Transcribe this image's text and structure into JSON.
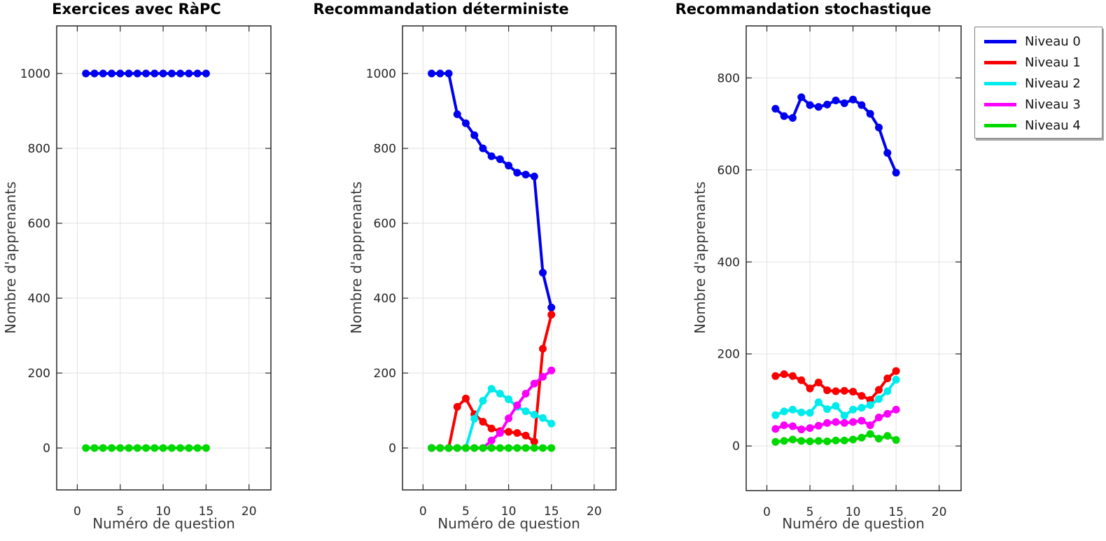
{
  "legend": {
    "position": "top-right",
    "items": [
      {
        "label": "Niveau 0",
        "color": "#0000f0"
      },
      {
        "label": "Niveau 1",
        "color": "#fa0000"
      },
      {
        "label": "Niveau 2",
        "color": "#00ebeb"
      },
      {
        "label": "Niveau 3",
        "color": "#fa00fa"
      },
      {
        "label": "Niveau 4",
        "color": "#00d900"
      }
    ]
  },
  "chart_data": [
    {
      "type": "line",
      "title": "Exercices avec RàPC",
      "xlabel": "Numéro de question",
      "ylabel": "Nombre d'apprenants",
      "x": [
        1,
        2,
        3,
        4,
        5,
        6,
        7,
        8,
        9,
        10,
        11,
        12,
        13,
        14,
        15
      ],
      "xlim": [
        -2.4,
        22.55
      ],
      "ylim": [
        -112,
        1127
      ],
      "xticks": [
        0,
        5,
        10,
        15,
        20
      ],
      "yticks": [
        0,
        200,
        400,
        600,
        800,
        1000
      ],
      "grid": true,
      "series": [
        {
          "name": "Niveau 0",
          "color": "#0000f0",
          "values": [
            1000,
            1000,
            1000,
            1000,
            1000,
            1000,
            1000,
            1000,
            1000,
            1000,
            1000,
            1000,
            1000,
            1000,
            1000
          ]
        },
        {
          "name": "Niveau 4",
          "color": "#00d900",
          "values": [
            0,
            0,
            0,
            0,
            0,
            0,
            0,
            0,
            0,
            0,
            0,
            0,
            0,
            0,
            0
          ]
        }
      ]
    },
    {
      "type": "line",
      "title": "Recommandation déterministe",
      "xlabel": "Numéro de question",
      "ylabel": "Nombre d'apprenants",
      "x": [
        1,
        2,
        3,
        4,
        5,
        6,
        7,
        8,
        9,
        10,
        11,
        12,
        13,
        14,
        15
      ],
      "xlim": [
        -2.4,
        22.55
      ],
      "ylim": [
        -112,
        1127
      ],
      "xticks": [
        0,
        5,
        10,
        15,
        20
      ],
      "yticks": [
        0,
        200,
        400,
        600,
        800,
        1000
      ],
      "grid": true,
      "series": [
        {
          "name": "Niveau 0",
          "color": "#0000f0",
          "values": [
            1000,
            1000,
            1000,
            891,
            867,
            835,
            800,
            779,
            771,
            754,
            735,
            730,
            725,
            468,
            375
          ]
        },
        {
          "name": "Niveau 1",
          "color": "#fa0000",
          "values": [
            0,
            0,
            0,
            110,
            132,
            90,
            70,
            52,
            45,
            43,
            40,
            33,
            17,
            265,
            356
          ]
        },
        {
          "name": "Niveau 2",
          "color": "#00ebeb",
          "values": [
            0,
            0,
            0,
            0,
            0,
            78,
            126,
            158,
            145,
            130,
            110,
            98,
            89,
            80,
            65
          ]
        },
        {
          "name": "Niveau 3",
          "color": "#fa00fa",
          "values": [
            0,
            0,
            0,
            0,
            0,
            0,
            0,
            20,
            40,
            79,
            114,
            145,
            172,
            190,
            207
          ]
        },
        {
          "name": "Niveau 4",
          "color": "#00d900",
          "values": [
            0,
            0,
            0,
            0,
            0,
            0,
            0,
            0,
            0,
            0,
            0,
            0,
            0,
            0,
            0
          ]
        }
      ]
    },
    {
      "type": "line",
      "title": "Recommandation stochastique",
      "xlabel": "Numéro de question",
      "ylabel": "Nombre d'apprenants",
      "x": [
        1,
        2,
        3,
        4,
        5,
        6,
        7,
        8,
        9,
        10,
        11,
        12,
        13,
        14,
        15
      ],
      "xlim": [
        -2.4,
        22.55
      ],
      "ylim": [
        -97,
        913
      ],
      "xticks": [
        0,
        5,
        10,
        15,
        20
      ],
      "yticks": [
        0,
        200,
        400,
        600,
        800
      ],
      "grid": true,
      "series": [
        {
          "name": "Niveau 0",
          "color": "#0000f0",
          "values": [
            733,
            717,
            713,
            758,
            741,
            737,
            742,
            751,
            745,
            753,
            741,
            722,
            692,
            637,
            594
          ]
        },
        {
          "name": "Niveau 1",
          "color": "#fa0000",
          "values": [
            152,
            156,
            152,
            143,
            125,
            138,
            121,
            119,
            120,
            118,
            109,
            100,
            122,
            147,
            163
          ]
        },
        {
          "name": "Niveau 2",
          "color": "#00ebeb",
          "values": [
            67,
            75,
            79,
            73,
            72,
            95,
            80,
            87,
            66,
            79,
            83,
            89,
            102,
            119,
            144
          ]
        },
        {
          "name": "Niveau 3",
          "color": "#fa00fa",
          "values": [
            37,
            45,
            43,
            36,
            39,
            44,
            50,
            52,
            50,
            52,
            55,
            45,
            62,
            70,
            79
          ]
        },
        {
          "name": "Niveau 4",
          "color": "#00d900",
          "values": [
            9,
            11,
            14,
            11,
            10,
            11,
            10,
            12,
            12,
            14,
            18,
            26,
            16,
            22,
            13
          ]
        }
      ]
    }
  ]
}
